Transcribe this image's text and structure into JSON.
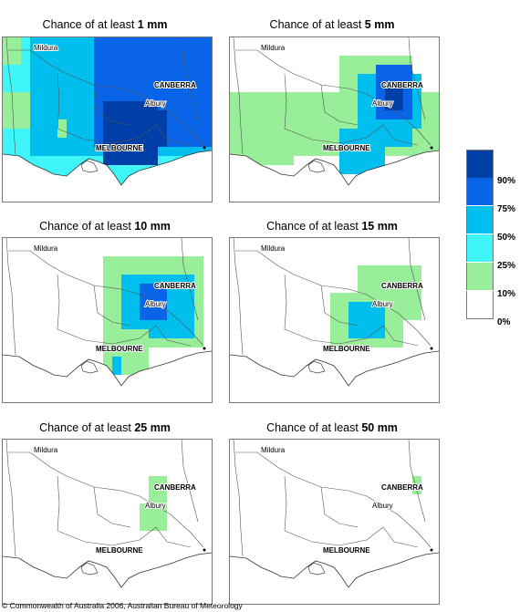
{
  "panels": [
    {
      "title_prefix": "Chance of at least ",
      "amount": "1 mm"
    },
    {
      "title_prefix": "Chance of at least ",
      "amount": "5 mm"
    },
    {
      "title_prefix": "Chance of at least ",
      "amount": "10 mm"
    },
    {
      "title_prefix": "Chance of at least ",
      "amount": "15 mm"
    },
    {
      "title_prefix": "Chance of at least ",
      "amount": "25 mm"
    },
    {
      "title_prefix": "Chance of at least ",
      "amount": "50 mm"
    }
  ],
  "places": {
    "mildura": "Mildura",
    "canberra": "CANBERRA",
    "albury": "Albury",
    "melbourne": "MELBOURNE"
  },
  "legend": {
    "labels": [
      "90%",
      "75%",
      "50%",
      "25%",
      "10%",
      "0%"
    ],
    "colors": [
      "#003fa8",
      "#0a64e8",
      "#00bfee",
      "#3ff5f8",
      "#99ee99",
      "#ffffff"
    ]
  },
  "copyright": "© Commonwealth of Australia 2006, Australian Bureau of Meteorology"
}
